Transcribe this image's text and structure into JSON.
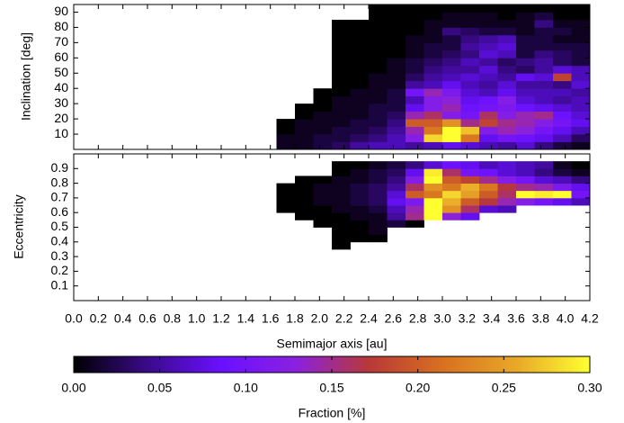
{
  "chart_data": {
    "type": "heatmap",
    "xlabel": "Semimajor axis [au]",
    "xlim": [
      0,
      4.2
    ],
    "xticks": [
      {
        "value": 0,
        "label": "0.0"
      },
      0.2,
      0.4,
      0.6,
      0.8,
      {
        "value": 1,
        "label": "1.0"
      },
      1.2,
      1.4,
      1.6,
      1.8,
      {
        "value": 2,
        "label": "2.0"
      },
      2.2,
      2.4,
      2.6,
      2.8,
      {
        "value": 3,
        "label": "3.0"
      },
      3.2,
      3.4,
      3.6,
      3.8,
      {
        "value": 4,
        "label": "4.0"
      },
      4.2
    ],
    "x_bins": [
      1.65,
      1.8,
      1.95,
      2.1,
      2.25,
      2.4,
      2.55,
      2.7,
      2.85,
      3.0,
      3.15,
      3.3,
      3.45,
      3.6,
      3.75,
      3.9,
      4.05,
      4.2
    ],
    "panels": [
      {
        "ylabel": "Inclination [deg]",
        "ylim": [
          0,
          95
        ],
        "yticks": [
          10,
          20,
          30,
          40,
          50,
          60,
          70,
          80,
          90
        ],
        "y_bins": [
          0,
          5,
          10,
          15,
          20,
          25,
          30,
          35,
          40,
          45,
          50,
          55,
          60,
          65,
          70,
          75,
          80,
          85,
          90,
          95
        ],
        "values": [
          [
            0.01,
            0.01,
            0.02,
            0.03,
            0.05,
            0.06,
            0.06,
            0.05,
            0.06,
            0.08,
            0.07,
            0.06,
            0.05,
            0.07,
            0.04,
            0.02,
            0.01
          ],
          [
            0.01,
            0.01,
            0.02,
            0.02,
            0.03,
            0.04,
            0.06,
            0.12,
            0.28,
            0.3,
            0.22,
            0.08,
            0.1,
            0.09,
            0.08,
            0.06,
            0.03
          ],
          [
            0.0,
            0.01,
            0.01,
            0.02,
            0.02,
            0.03,
            0.05,
            0.14,
            0.22,
            0.3,
            0.27,
            0.12,
            0.14,
            0.13,
            0.1,
            0.08,
            0.06
          ],
          [
            0.0,
            0.01,
            0.01,
            0.01,
            0.02,
            0.02,
            0.04,
            0.2,
            0.2,
            0.24,
            0.15,
            0.18,
            0.15,
            0.14,
            0.12,
            0.1,
            0.08
          ],
          [
            null,
            0.0,
            0.01,
            0.01,
            0.01,
            0.02,
            0.03,
            0.14,
            0.16,
            0.12,
            0.1,
            0.16,
            0.12,
            0.14,
            0.15,
            0.09,
            0.07
          ],
          [
            null,
            0.0,
            0.0,
            0.01,
            0.01,
            0.02,
            0.02,
            0.08,
            0.12,
            0.14,
            0.09,
            0.1,
            0.11,
            0.09,
            0.08,
            0.07,
            0.06
          ],
          [
            null,
            null,
            0.0,
            0.01,
            0.01,
            0.01,
            0.02,
            0.06,
            0.12,
            0.13,
            0.08,
            0.09,
            0.12,
            0.07,
            0.06,
            0.05,
            0.06
          ],
          [
            null,
            null,
            0.0,
            0.0,
            0.01,
            0.01,
            0.02,
            0.1,
            0.14,
            0.11,
            0.07,
            0.06,
            0.08,
            0.06,
            0.06,
            0.06,
            0.05
          ],
          [
            null,
            null,
            null,
            0.0,
            0.0,
            0.01,
            0.01,
            0.05,
            0.06,
            0.08,
            0.06,
            0.05,
            0.07,
            0.05,
            0.05,
            0.04,
            0.07
          ],
          [
            null,
            null,
            null,
            0.0,
            0.0,
            0.01,
            0.01,
            0.03,
            0.05,
            0.06,
            0.07,
            0.06,
            0.05,
            0.08,
            0.07,
            0.18,
            0.06
          ],
          [
            null,
            null,
            null,
            0.0,
            0.0,
            0.0,
            0.01,
            0.02,
            0.04,
            0.05,
            0.05,
            0.07,
            0.04,
            0.03,
            0.05,
            0.07,
            0.06
          ],
          [
            null,
            null,
            null,
            0.0,
            0.0,
            0.0,
            0.01,
            0.02,
            0.03,
            0.04,
            0.06,
            0.05,
            0.03,
            0.04,
            0.05,
            0.03,
            0.02
          ],
          [
            null,
            null,
            null,
            0.0,
            0.0,
            0.0,
            0.0,
            0.01,
            0.02,
            0.03,
            0.04,
            0.07,
            0.06,
            0.02,
            0.04,
            0.03,
            0.02
          ],
          [
            null,
            null,
            null,
            0.0,
            0.0,
            0.0,
            0.0,
            0.01,
            0.02,
            0.02,
            0.05,
            0.06,
            0.07,
            0.02,
            0.02,
            0.02,
            0.02
          ],
          [
            null,
            null,
            null,
            0.0,
            0.0,
            0.0,
            0.0,
            0.01,
            0.01,
            0.02,
            0.04,
            0.05,
            0.06,
            0.02,
            0.02,
            0.01,
            0.01
          ],
          [
            null,
            null,
            null,
            0.0,
            0.0,
            0.0,
            0.0,
            0.0,
            0.01,
            0.04,
            0.03,
            0.02,
            0.02,
            0.01,
            0.02,
            0.02,
            0.01
          ],
          [
            null,
            null,
            null,
            0.0,
            0.0,
            0.0,
            0.0,
            0.0,
            0.01,
            0.01,
            0.01,
            0.01,
            0.01,
            0.01,
            0.04,
            0.01,
            0.01
          ],
          [
            null,
            null,
            null,
            null,
            null,
            0.0,
            0.0,
            0.0,
            0.0,
            0.01,
            0.01,
            0.01,
            0.0,
            0.01,
            0.02,
            0.0,
            0.0
          ],
          [
            null,
            null,
            null,
            null,
            null,
            0.0,
            0.0,
            0.0,
            0.0,
            0.0,
            0.0,
            0.0,
            0.0,
            0.0,
            0.0,
            0.0,
            0.0
          ]
        ]
      },
      {
        "ylabel": "Eccentricity",
        "ylim": [
          0,
          1
        ],
        "yticks": [
          0.1,
          0.2,
          0.3,
          0.4,
          0.5,
          0.6,
          0.7,
          0.8,
          0.9
        ],
        "y_bins": [
          0,
          0.05,
          0.1,
          0.15,
          0.2,
          0.25,
          0.3,
          0.35,
          0.4,
          0.45,
          0.5,
          0.55,
          0.6,
          0.65,
          0.7,
          0.75,
          0.8,
          0.85,
          0.9,
          0.95,
          1
        ],
        "values": [
          [
            null,
            null,
            null,
            null,
            null,
            null,
            null,
            null,
            null,
            null,
            null,
            null,
            null,
            null,
            null,
            null,
            null
          ],
          [
            null,
            null,
            null,
            null,
            null,
            null,
            null,
            null,
            null,
            null,
            null,
            null,
            null,
            null,
            null,
            null,
            null
          ],
          [
            null,
            null,
            null,
            null,
            null,
            null,
            null,
            null,
            null,
            null,
            null,
            null,
            null,
            null,
            null,
            null,
            null
          ],
          [
            null,
            null,
            null,
            null,
            null,
            null,
            null,
            null,
            null,
            null,
            null,
            null,
            null,
            null,
            null,
            null,
            null
          ],
          [
            null,
            null,
            null,
            null,
            null,
            null,
            null,
            null,
            null,
            null,
            null,
            null,
            null,
            null,
            null,
            null,
            null
          ],
          [
            null,
            null,
            null,
            null,
            null,
            null,
            null,
            null,
            null,
            null,
            null,
            null,
            null,
            null,
            null,
            null,
            null
          ],
          [
            null,
            null,
            null,
            null,
            null,
            null,
            null,
            null,
            null,
            null,
            null,
            null,
            null,
            null,
            null,
            null,
            null
          ],
          [
            null,
            null,
            null,
            0.0,
            null,
            null,
            null,
            null,
            null,
            null,
            null,
            null,
            null,
            null,
            null,
            null,
            null
          ],
          [
            null,
            null,
            null,
            0.0,
            0.0,
            0.0,
            null,
            null,
            null,
            null,
            null,
            null,
            null,
            null,
            null,
            null,
            null
          ],
          [
            null,
            null,
            null,
            0.0,
            0.0,
            0.01,
            null,
            null,
            null,
            null,
            null,
            null,
            null,
            null,
            null,
            null,
            null
          ],
          [
            null,
            null,
            0.0,
            0.0,
            0.0,
            0.01,
            0.02,
            0.0,
            null,
            null,
            null,
            null,
            null,
            null,
            null,
            null,
            null
          ],
          [
            null,
            0.0,
            0.0,
            0.0,
            0.01,
            0.01,
            0.05,
            0.15,
            0.3,
            0.13,
            0.08,
            null,
            null,
            null,
            null,
            null,
            null
          ],
          [
            0.0,
            0.0,
            0.0,
            0.01,
            0.01,
            0.02,
            0.06,
            0.14,
            0.3,
            0.24,
            0.16,
            0.07,
            0.06,
            null,
            null,
            null,
            null
          ],
          [
            0.0,
            0.0,
            0.01,
            0.01,
            0.02,
            0.03,
            0.08,
            0.11,
            0.3,
            0.26,
            0.2,
            0.17,
            0.14,
            0.12,
            0.1,
            0.08,
            0.06
          ],
          [
            0.0,
            0.0,
            0.01,
            0.01,
            0.02,
            0.03,
            0.07,
            0.2,
            0.22,
            0.28,
            0.25,
            0.2,
            0.16,
            0.3,
            0.29,
            0.3,
            0.1
          ],
          [
            0.0,
            0.0,
            0.01,
            0.01,
            0.02,
            0.03,
            0.05,
            0.16,
            0.24,
            0.22,
            0.26,
            0.22,
            0.17,
            0.15,
            0.14,
            0.11,
            0.08
          ],
          [
            null,
            0.0,
            0.0,
            0.01,
            0.01,
            0.02,
            0.04,
            0.12,
            0.3,
            0.2,
            0.18,
            0.15,
            0.12,
            0.1,
            0.07,
            0.06,
            0.04
          ],
          [
            null,
            null,
            null,
            0.0,
            0.01,
            0.02,
            0.03,
            0.08,
            0.29,
            0.16,
            0.1,
            0.09,
            0.07,
            0.06,
            0.04,
            0.02,
            0.01
          ],
          [
            null,
            null,
            null,
            0.0,
            0.0,
            0.01,
            0.02,
            0.04,
            0.07,
            0.09,
            0.08,
            0.06,
            0.07,
            0.06,
            0.05,
            0.01,
            0.0
          ],
          [
            null,
            null,
            null,
            null,
            null,
            null,
            null,
            null,
            null,
            null,
            null,
            null,
            null,
            null,
            null,
            null,
            null
          ]
        ]
      }
    ],
    "colorbar": {
      "label": "Fraction [%]",
      "lim": [
        0,
        0.3
      ],
      "ticks": [
        {
          "value": 0,
          "label": "0.00"
        },
        {
          "value": 0.05,
          "label": "0.05"
        },
        {
          "value": 0.1,
          "label": "0.10"
        },
        {
          "value": 0.15,
          "label": "0.15"
        },
        {
          "value": 0.2,
          "label": "0.20"
        },
        {
          "value": 0.25,
          "label": "0.25"
        },
        {
          "value": 0.3,
          "label": "0.30"
        }
      ],
      "colors": [
        "#000000",
        "#3a0a8a",
        "#6a10ff",
        "#8a20e0",
        "#b83838",
        "#d87020",
        "#e8a828",
        "#ffff30"
      ]
    }
  }
}
